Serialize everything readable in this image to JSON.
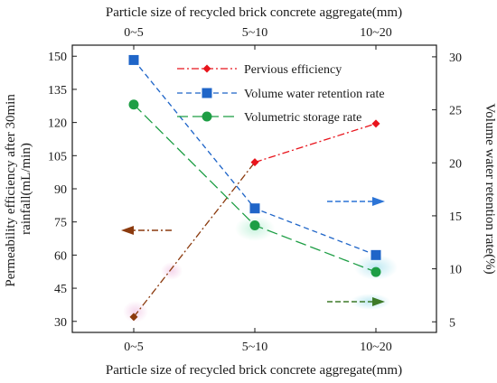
{
  "chart_data": {
    "type": "line",
    "title": "",
    "categories": [
      "0~5",
      "5~10",
      "10~20"
    ],
    "xlabel_bottom": "Particle size of recycled brick concrete aggregate(mm)",
    "xlabel_top": "Particle size of recycled brick concrete aggregate(mm)",
    "ylabel_left": "Permeability efficiency after 30min rainfall(mL/min)",
    "ylabel_left_lines": [
      "Permeability efficiency after 30min",
      "rainfall(mL/min)"
    ],
    "ylabel_right": "Volume water retention rate(%)",
    "y_left": {
      "min": 25,
      "max": 155,
      "ticks": [
        30,
        45,
        60,
        75,
        90,
        105,
        120,
        135,
        150
      ]
    },
    "y_right": {
      "min": 4.0,
      "max": 31.1,
      "ticks": [
        5,
        10,
        15,
        20,
        25,
        30
      ]
    },
    "grid": false,
    "legend_position": "top-center",
    "series": [
      {
        "name": "Pervious efficiency",
        "axis": "left",
        "values": [
          32,
          102,
          119.5
        ],
        "color": "#e8141c",
        "line": "dash-dot",
        "marker": "diamond"
      },
      {
        "name": "Volume water retention rate",
        "axis": "right",
        "values": [
          29.7,
          15.7,
          11.3
        ],
        "color": "#1f65c8",
        "line": "dashed",
        "marker": "square"
      },
      {
        "name": "Volumetric storage rate",
        "axis": "right",
        "values": [
          25.5,
          14.1,
          9.7
        ],
        "color": "#1e9e45",
        "line": "long-dash",
        "marker": "circle"
      }
    ],
    "annotations": [
      {
        "type": "arrow",
        "direction": "left",
        "color": "#8b3a0e",
        "points_to_axis": "left"
      },
      {
        "type": "arrow",
        "direction": "right",
        "color": "#2c74d6",
        "points_to_axis": "right"
      },
      {
        "type": "arrow",
        "direction": "right",
        "color": "#3d7a28",
        "points_to_axis": "right"
      }
    ]
  }
}
